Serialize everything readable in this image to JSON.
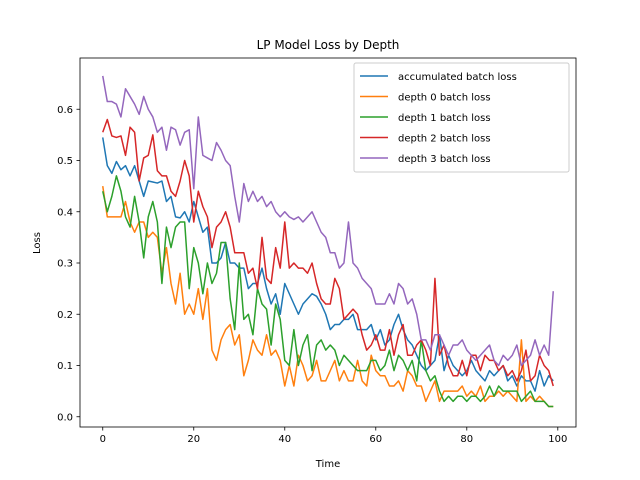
{
  "chart_data": {
    "type": "line",
    "title": "LP Model Loss by Depth",
    "xlabel": "Time",
    "ylabel": "Loss",
    "xlim": [
      -5,
      104
    ],
    "ylim": [
      -0.02,
      0.7
    ],
    "xticks": [
      0,
      20,
      40,
      60,
      80,
      100
    ],
    "yticks": [
      0.0,
      0.1,
      0.2,
      0.3,
      0.4,
      0.5,
      0.6
    ],
    "ytick_labels": [
      "0.0",
      "0.1",
      "0.2",
      "0.3",
      "0.4",
      "0.5",
      "0.6"
    ],
    "grid": false,
    "legend_position": "top-right",
    "x": [
      0,
      1,
      2,
      3,
      4,
      5,
      6,
      7,
      8,
      9,
      10,
      11,
      12,
      13,
      14,
      15,
      16,
      17,
      18,
      19,
      20,
      21,
      22,
      23,
      24,
      25,
      26,
      27,
      28,
      29,
      30,
      31,
      32,
      33,
      34,
      35,
      36,
      37,
      38,
      39,
      40,
      41,
      42,
      43,
      44,
      45,
      46,
      47,
      48,
      49,
      50,
      51,
      52,
      53,
      54,
      55,
      56,
      57,
      58,
      59,
      60,
      61,
      62,
      63,
      64,
      65,
      66,
      67,
      68,
      69,
      70,
      71,
      72,
      73,
      74,
      75,
      76,
      77,
      78,
      79,
      80,
      81,
      82,
      83,
      84,
      85,
      86,
      87,
      88,
      89,
      90,
      91,
      92,
      93,
      94,
      95,
      96,
      97,
      98,
      99
    ],
    "series": [
      {
        "name": "accumulated batch loss",
        "color": "#1f77b4",
        "values": [
          0.545,
          0.49,
          0.475,
          0.498,
          0.482,
          0.49,
          0.47,
          0.49,
          0.46,
          0.43,
          0.46,
          0.458,
          0.456,
          0.46,
          0.42,
          0.43,
          0.39,
          0.388,
          0.4,
          0.38,
          0.42,
          0.39,
          0.36,
          0.37,
          0.3,
          0.3,
          0.31,
          0.34,
          0.3,
          0.3,
          0.29,
          0.29,
          0.25,
          0.26,
          0.26,
          0.29,
          0.25,
          0.22,
          0.24,
          0.2,
          0.26,
          0.24,
          0.22,
          0.2,
          0.22,
          0.23,
          0.24,
          0.235,
          0.22,
          0.2,
          0.17,
          0.18,
          0.18,
          0.19,
          0.19,
          0.2,
          0.17,
          0.17,
          0.17,
          0.18,
          0.15,
          0.17,
          0.14,
          0.15,
          0.18,
          0.2,
          0.17,
          0.15,
          0.14,
          0.12,
          0.1,
          0.09,
          0.1,
          0.11,
          0.16,
          0.09,
          0.12,
          0.1,
          0.09,
          0.08,
          0.09,
          0.11,
          0.09,
          0.08,
          0.07,
          0.09,
          0.08,
          0.09,
          0.1,
          0.07,
          0.08,
          0.06,
          0.08,
          0.07,
          0.07,
          0.05,
          0.09,
          0.06,
          0.08,
          0.07
        ]
      },
      {
        "name": "depth 0 batch loss",
        "color": "#ff7f0e",
        "values": [
          0.45,
          0.39,
          0.39,
          0.39,
          0.39,
          0.42,
          0.38,
          0.36,
          0.38,
          0.38,
          0.35,
          0.36,
          0.35,
          0.28,
          0.33,
          0.26,
          0.22,
          0.28,
          0.2,
          0.22,
          0.2,
          0.25,
          0.19,
          0.25,
          0.13,
          0.11,
          0.15,
          0.17,
          0.18,
          0.14,
          0.16,
          0.08,
          0.11,
          0.15,
          0.13,
          0.12,
          0.16,
          0.12,
          0.13,
          0.11,
          0.06,
          0.1,
          0.06,
          0.12,
          0.1,
          0.07,
          0.08,
          0.11,
          0.07,
          0.07,
          0.09,
          0.11,
          0.07,
          0.09,
          0.07,
          0.07,
          0.11,
          0.07,
          0.06,
          0.12,
          0.09,
          0.08,
          0.08,
          0.06,
          0.06,
          0.07,
          0.05,
          0.09,
          0.08,
          0.06,
          0.06,
          0.03,
          0.05,
          0.07,
          0.03,
          0.05,
          0.05,
          0.05,
          0.05,
          0.06,
          0.04,
          0.05,
          0.04,
          0.06,
          0.03,
          0.04,
          0.04,
          0.05,
          0.04,
          0.05,
          0.04,
          0.03,
          0.15,
          0.03,
          0.04,
          0.03,
          0.04,
          0.03,
          0.02,
          0.02
        ]
      },
      {
        "name": "depth 1 batch loss",
        "color": "#2ca02c",
        "values": [
          0.44,
          0.4,
          0.43,
          0.47,
          0.44,
          0.39,
          0.37,
          0.43,
          0.38,
          0.31,
          0.39,
          0.42,
          0.38,
          0.26,
          0.37,
          0.33,
          0.37,
          0.38,
          0.38,
          0.25,
          0.33,
          0.3,
          0.24,
          0.3,
          0.26,
          0.28,
          0.34,
          0.34,
          0.23,
          0.17,
          0.3,
          0.19,
          0.2,
          0.16,
          0.25,
          0.22,
          0.21,
          0.14,
          0.22,
          0.19,
          0.11,
          0.1,
          0.17,
          0.1,
          0.14,
          0.16,
          0.09,
          0.14,
          0.15,
          0.13,
          0.14,
          0.13,
          0.1,
          0.12,
          0.11,
          0.1,
          0.09,
          0.09,
          0.09,
          0.11,
          0.11,
          0.09,
          0.1,
          0.13,
          0.09,
          0.12,
          0.11,
          0.09,
          0.11,
          0.07,
          0.15,
          0.09,
          0.07,
          0.08,
          0.05,
          0.03,
          0.04,
          0.03,
          0.04,
          0.04,
          0.03,
          0.04,
          0.04,
          0.03,
          0.04,
          0.06,
          0.04,
          0.06,
          0.05,
          0.05,
          0.05,
          0.05,
          0.03,
          0.04,
          0.05,
          0.03,
          0.03,
          0.03,
          0.02,
          0.02
        ]
      },
      {
        "name": "depth 2 batch loss",
        "color": "#d62728",
        "values": [
          0.555,
          0.58,
          0.548,
          0.545,
          0.548,
          0.51,
          0.565,
          0.555,
          0.46,
          0.505,
          0.51,
          0.55,
          0.48,
          0.47,
          0.47,
          0.44,
          0.43,
          0.46,
          0.5,
          0.47,
          0.38,
          0.44,
          0.41,
          0.39,
          0.33,
          0.37,
          0.38,
          0.4,
          0.37,
          0.32,
          0.32,
          0.32,
          0.28,
          0.29,
          0.25,
          0.35,
          0.27,
          0.26,
          0.33,
          0.29,
          0.38,
          0.29,
          0.3,
          0.29,
          0.29,
          0.28,
          0.3,
          0.26,
          0.23,
          0.22,
          0.22,
          0.27,
          0.25,
          0.19,
          0.2,
          0.21,
          0.2,
          0.16,
          0.13,
          0.14,
          0.16,
          0.13,
          0.13,
          0.17,
          0.12,
          0.16,
          0.18,
          0.12,
          0.12,
          0.14,
          0.15,
          0.13,
          0.1,
          0.27,
          0.12,
          0.14,
          0.1,
          0.08,
          0.08,
          0.11,
          0.08,
          0.12,
          0.12,
          0.09,
          0.12,
          0.11,
          0.11,
          0.09,
          0.1,
          0.08,
          0.09,
          0.07,
          0.09,
          0.13,
          0.07,
          0.08,
          0.12,
          0.1,
          0.09,
          0.06
        ]
      },
      {
        "name": "depth 3 batch loss",
        "color": "#9467bd",
        "values": [
          0.665,
          0.615,
          0.615,
          0.61,
          0.585,
          0.64,
          0.625,
          0.61,
          0.59,
          0.625,
          0.6,
          0.585,
          0.555,
          0.565,
          0.52,
          0.565,
          0.56,
          0.53,
          0.555,
          0.56,
          0.445,
          0.585,
          0.51,
          0.505,
          0.5,
          0.535,
          0.52,
          0.5,
          0.49,
          0.43,
          0.38,
          0.455,
          0.42,
          0.44,
          0.42,
          0.43,
          0.41,
          0.42,
          0.4,
          0.39,
          0.4,
          0.39,
          0.385,
          0.39,
          0.38,
          0.39,
          0.4,
          0.38,
          0.36,
          0.35,
          0.32,
          0.32,
          0.29,
          0.3,
          0.38,
          0.3,
          0.29,
          0.27,
          0.26,
          0.25,
          0.22,
          0.22,
          0.22,
          0.24,
          0.22,
          0.26,
          0.25,
          0.22,
          0.23,
          0.2,
          0.15,
          0.15,
          0.13,
          0.16,
          0.16,
          0.14,
          0.12,
          0.14,
          0.14,
          0.15,
          0.13,
          0.12,
          0.11,
          0.12,
          0.13,
          0.14,
          0.11,
          0.1,
          0.12,
          0.11,
          0.12,
          0.14,
          0.1,
          0.11,
          0.12,
          0.15,
          0.12,
          0.14,
          0.12,
          0.245
        ]
      }
    ]
  }
}
